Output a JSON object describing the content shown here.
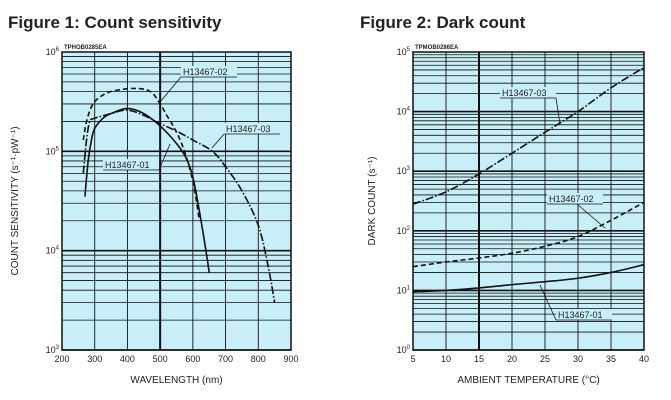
{
  "chart_data": [
    {
      "type": "line",
      "title": "Figure 1: Count sensitivity",
      "code": "TPHOB0285EA",
      "xlabel": "WAVELENGTH (nm)",
      "ylabel": "COUNT SENSITIVITY (s⁻¹·pW⁻¹)",
      "xlim": [
        200,
        900
      ],
      "ylim": [
        1000,
        1000000
      ],
      "yscale": "log",
      "xticks": [
        "200",
        "300",
        "400",
        "500",
        "600",
        "700",
        "800",
        "900"
      ],
      "yticks": [
        {
          "e": "3"
        },
        {
          "e": "4"
        },
        {
          "e": "5"
        },
        {
          "e": "6"
        }
      ],
      "grid": true,
      "background": "#c8eef8",
      "series": [
        {
          "name": "H13467-01",
          "style": "solid",
          "x": [
            270,
            280,
            290,
            300,
            325,
            350,
            400,
            450,
            500,
            550,
            580,
            600,
            620,
            640,
            650
          ],
          "y": [
            35000,
            80000,
            130000,
            170000,
            215000,
            240000,
            270000,
            240000,
            180000,
            120000,
            85000,
            55000,
            25000,
            10000,
            6000
          ]
        },
        {
          "name": "H13467-02",
          "style": "dashed",
          "x": [
            265,
            275,
            290,
            310,
            350,
            420,
            470,
            500,
            520,
            540,
            570,
            600,
            620
          ],
          "y": [
            130000,
            200000,
            280000,
            340000,
            400000,
            430000,
            400000,
            300000,
            230000,
            180000,
            110000,
            50000,
            20000
          ]
        },
        {
          "name": "H13467-03",
          "style": "dashdot",
          "x": [
            265,
            275,
            285,
            300,
            350,
            400,
            450,
            500,
            550,
            600,
            660,
            700,
            750,
            800,
            830,
            850
          ],
          "y": [
            60000,
            130000,
            200000,
            215000,
            240000,
            260000,
            230000,
            190000,
            160000,
            130000,
            100000,
            70000,
            40000,
            18000,
            7000,
            3000
          ]
        }
      ],
      "annotations": [
        "H13467-02",
        "H13467-03",
        "H13467-01"
      ]
    },
    {
      "type": "line",
      "title": "Figure 2: Dark count",
      "code": "TPMOB0286EA",
      "xlabel": "AMBIENT TEMPERATURE (°C)",
      "ylabel": "DARK COUNT (s⁻¹)",
      "xlim": [
        5,
        40
      ],
      "ylim": [
        1,
        100000
      ],
      "yscale": "log",
      "xticks": [
        "5",
        "10",
        "15",
        "20",
        "25",
        "30",
        "35",
        "40"
      ],
      "yticks": [
        {
          "e": "0"
        },
        {
          "e": "1"
        },
        {
          "e": "2"
        },
        {
          "e": "3"
        },
        {
          "e": "4"
        },
        {
          "e": "5"
        }
      ],
      "grid": true,
      "background": "#c8eef8",
      "series": [
        {
          "name": "H13467-01",
          "style": "solid",
          "x": [
            5,
            10,
            15,
            20,
            25,
            30,
            35,
            40
          ],
          "y": [
            9.5,
            10,
            11,
            12.5,
            14,
            16,
            20,
            27
          ]
        },
        {
          "name": "H13467-02",
          "style": "dashed",
          "x": [
            5,
            10,
            15,
            20,
            25,
            30,
            35,
            40
          ],
          "y": [
            25,
            30,
            35,
            42,
            55,
            80,
            150,
            300
          ]
        },
        {
          "name": "H13467-03",
          "style": "dashdot",
          "x": [
            5,
            10,
            15,
            20,
            25,
            30,
            35,
            40
          ],
          "y": [
            280,
            450,
            900,
            2000,
            4500,
            10000,
            25000,
            55000
          ]
        }
      ],
      "annotations": [
        "H13467-03",
        "H13467-02",
        "H13467-01"
      ]
    }
  ]
}
